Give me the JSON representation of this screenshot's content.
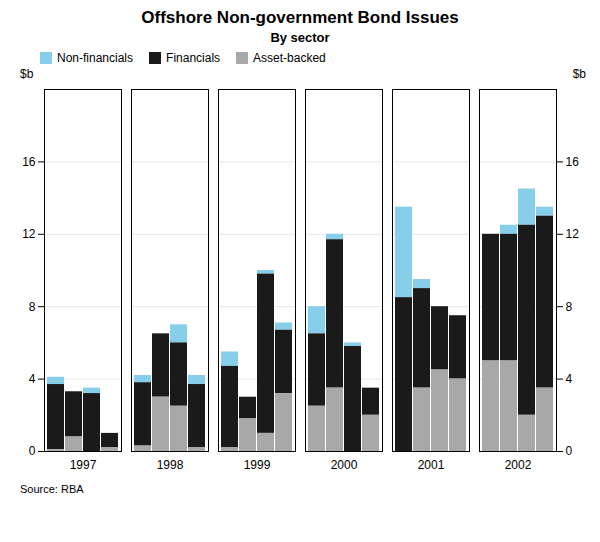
{
  "chart_data": {
    "type": "bar",
    "stacked": true,
    "title": "Offshore Non-government Bond Issues",
    "subtitle": "By sector",
    "y_label": "$b",
    "y2_label": "$b",
    "source": "Source: RBA",
    "categories": [
      "1997",
      null,
      null,
      null,
      "1998",
      null,
      null,
      null,
      "1999",
      null,
      null,
      null,
      "2000",
      null,
      null,
      null,
      "2001",
      null,
      null,
      null,
      "2002",
      null,
      null,
      null
    ],
    "series": [
      {
        "name": "Non-financials",
        "color": "#87ceeb",
        "values": [
          0.4,
          0.0,
          0.3,
          0.0,
          0.4,
          0.0,
          1.0,
          0.5,
          0.8,
          0.0,
          0.2,
          0.4,
          1.5,
          0.3,
          0.2,
          0.0,
          5.0,
          0.5,
          0.0,
          0.0,
          0.0,
          0.5,
          2.0,
          0.5
        ]
      },
      {
        "name": "Financials",
        "color": "#1a1a1a",
        "values": [
          3.6,
          2.5,
          3.2,
          0.8,
          3.5,
          3.5,
          3.5,
          3.5,
          4.5,
          1.2,
          8.8,
          3.5,
          4.0,
          8.2,
          5.8,
          1.5,
          8.5,
          5.5,
          3.5,
          3.5,
          7.0,
          7.0,
          10.5,
          9.5
        ]
      },
      {
        "name": "Asset-backed",
        "color": "#a8a8a8",
        "values": [
          0.1,
          0.8,
          0.0,
          0.2,
          0.3,
          3.0,
          2.5,
          0.2,
          0.2,
          1.8,
          1.0,
          3.2,
          2.5,
          3.5,
          0.0,
          2.0,
          0.0,
          3.5,
          4.5,
          4.0,
          5.0,
          5.0,
          2.0,
          3.5
        ]
      }
    ],
    "ylim": [
      0,
      20
    ],
    "yticks": [
      0,
      4,
      8,
      12,
      16
    ],
    "y2lim": [
      0,
      20
    ],
    "y2ticks": [
      0,
      4,
      8,
      12,
      16
    ],
    "grid": true,
    "legend": "upper left"
  }
}
